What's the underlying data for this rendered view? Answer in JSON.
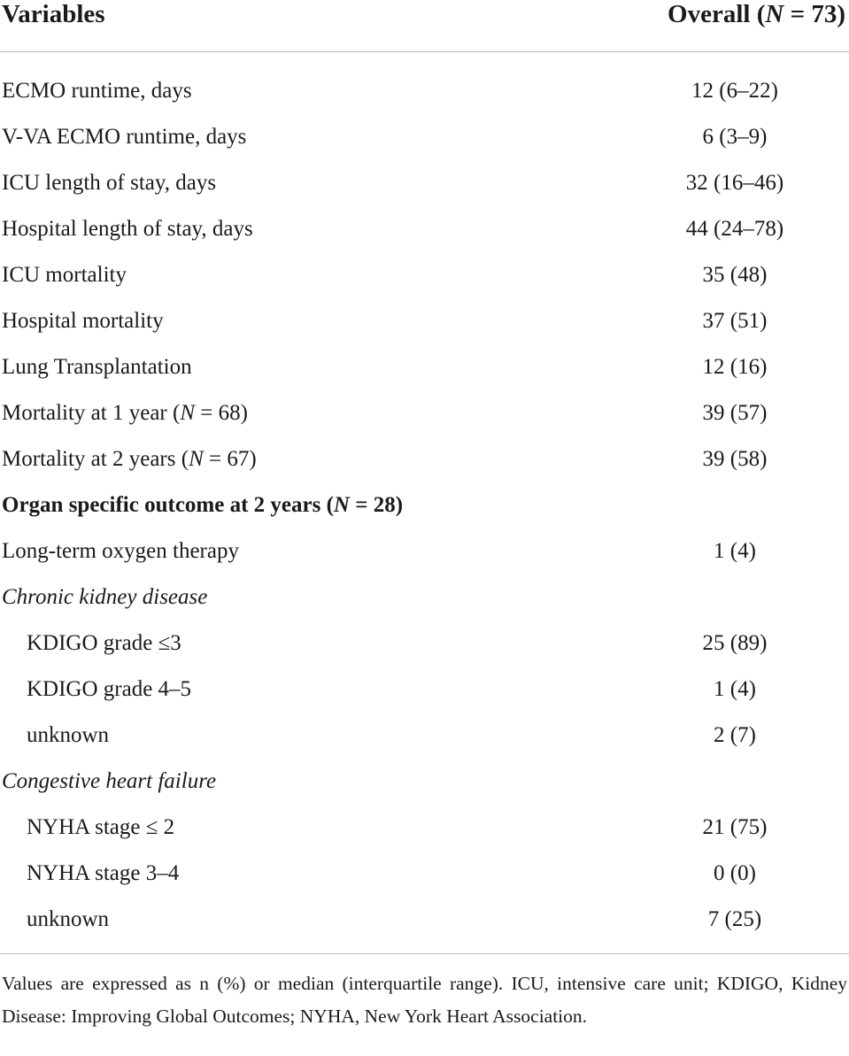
{
  "header": {
    "col_variables": "Variables",
    "col_overall_prefix": "Overall (",
    "col_overall_n": "N",
    "col_overall_suffix": " = 73)"
  },
  "rows": [
    {
      "label": "ECMO runtime, days",
      "value": "12 (6–22)",
      "style": "normal"
    },
    {
      "label": "V-VA ECMO runtime, days",
      "value": "6 (3–9)",
      "style": "normal"
    },
    {
      "label": "ICU length of stay, days",
      "value": "32 (16–46)",
      "style": "normal"
    },
    {
      "label": "Hospital length of stay, days",
      "value": "44 (24–78)",
      "style": "normal"
    },
    {
      "label": "ICU mortality",
      "value": "35 (48)",
      "style": "normal"
    },
    {
      "label": "Hospital mortality",
      "value": "37 (51)",
      "style": "normal"
    },
    {
      "label": "Lung Transplantation",
      "value": "12 (16)",
      "style": "normal"
    },
    {
      "label": "Mortality at 1 year (",
      "label_n": "N",
      "label_after": " = 68)",
      "value": "39 (57)",
      "style": "normal"
    },
    {
      "label": "Mortality at 2 years (",
      "label_n": "N",
      "label_after": " = 67)",
      "value": "39 (58)",
      "style": "normal"
    },
    {
      "label": "Organ specific outcome at 2 years (",
      "label_n": "N",
      "label_after": " = 28)",
      "value": "",
      "style": "group"
    },
    {
      "label": "Long-term oxygen therapy",
      "value": "1 (4)",
      "style": "normal"
    },
    {
      "label": "Chronic kidney disease",
      "value": "",
      "style": "italic"
    },
    {
      "label": "KDIGO grade ≤3",
      "value": "25 (89)",
      "style": "indent"
    },
    {
      "label": "KDIGO grade 4–5",
      "value": "1 (4)",
      "style": "indent"
    },
    {
      "label": "unknown",
      "value": "2 (7)",
      "style": "indent"
    },
    {
      "label": "Congestive heart failure",
      "value": "",
      "style": "italic"
    },
    {
      "label": "NYHA stage ≤ 2",
      "value": "21 (75)",
      "style": "indent"
    },
    {
      "label": "NYHA stage 3–4",
      "value": "0 (0)",
      "style": "indent"
    },
    {
      "label": "unknown",
      "value": "7 (25)",
      "style": "indent"
    }
  ],
  "footnote": "Values are expressed as n (%) or median (interquartile range). ICU, intensive care unit; KDIGO, Kidney Disease: Improving Global Outcomes; NYHA, New York Heart Association."
}
